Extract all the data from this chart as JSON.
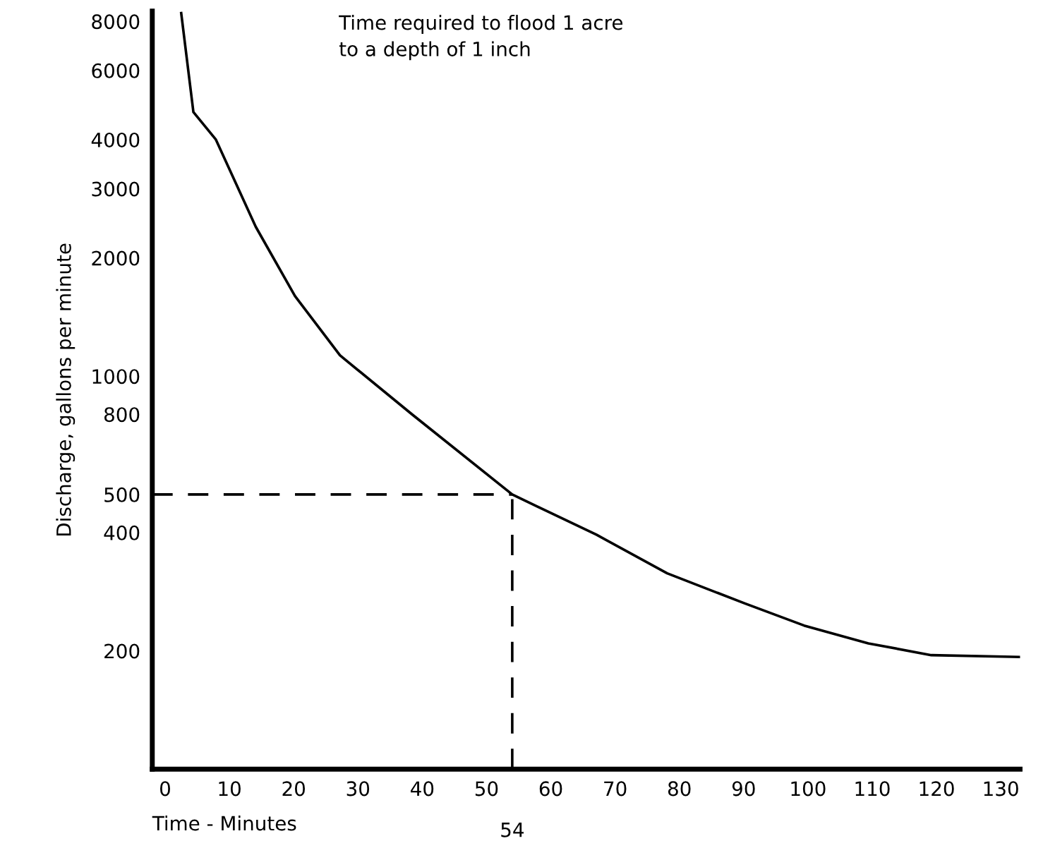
{
  "chart_data": {
    "type": "line",
    "xlabel": "Time - Minutes",
    "ylabel": "Discharge, gallons per minute",
    "annotations": [
      "Time required to flood 1 acre\nto a depth of 1 inch"
    ],
    "x": [
      2.5,
      4.4,
      7.9,
      14.1,
      20.2,
      27.2,
      38.4,
      54,
      67.1,
      78.1,
      90.2,
      99.4,
      109.4,
      119.2,
      133
    ],
    "series": [
      {
        "color": "#000000",
        "values": [
          8400,
          4700,
          4000,
          2400,
          1600,
          1130,
          800,
          500,
          395,
          315,
          264,
          232,
          209,
          195,
          193
        ]
      }
    ],
    "log": "y",
    "xlim": [
      -2,
      133
    ],
    "ylim": [
      100,
      8500
    ],
    "xticks": [
      0,
      10,
      20,
      30,
      40,
      50,
      60,
      70,
      80,
      90,
      100,
      110,
      120,
      130
    ],
    "yticks": [
      200,
      400,
      500,
      800,
      1000,
      2000,
      3000,
      4000,
      6000,
      8000
    ],
    "ref_lines": [
      {
        "axis": "x",
        "value": 54,
        "label": "54",
        "line_style": "dashed",
        "color": "#000000"
      },
      {
        "axis": "y",
        "value": 500,
        "label": null,
        "line_style": "dashed",
        "color": "#000000"
      }
    ],
    "grid": false,
    "legend": false,
    "marker": "none",
    "line_style": "solid"
  }
}
